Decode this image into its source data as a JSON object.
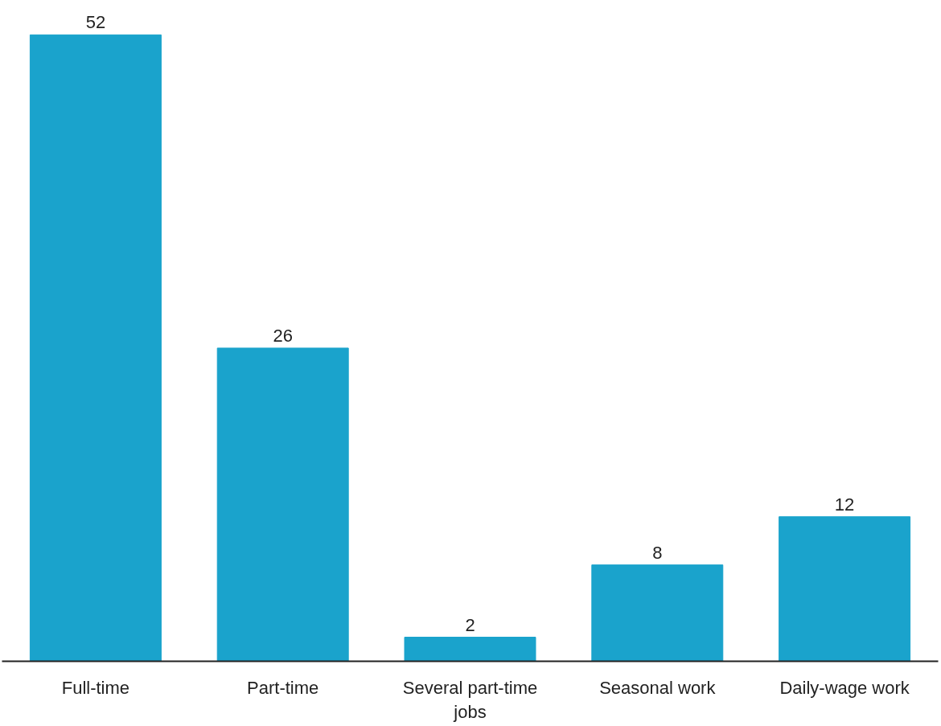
{
  "chart_data": {
    "type": "bar",
    "categories": [
      "Full-time",
      "Part-time",
      "Several part-time jobs",
      "Seasonal work",
      "Daily-wage work"
    ],
    "values": [
      52,
      26,
      2,
      8,
      12
    ],
    "color": "#1aa3cc",
    "data_labels": true
  }
}
